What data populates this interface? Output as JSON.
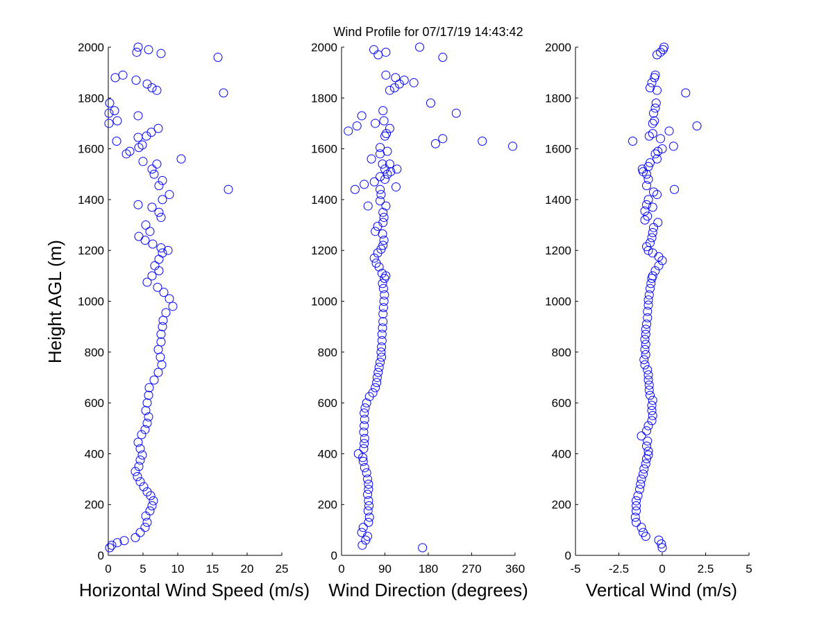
{
  "figure": {
    "title": "Wind Profile for  07/17/19 14:43:42",
    "marker_color": "#0000ff"
  },
  "chart_data": [
    {
      "type": "scatter",
      "title": "",
      "xlabel": "Horizontal Wind Speed (m/s)",
      "ylabel": "Height AGL (m)",
      "xlim": [
        0,
        25
      ],
      "ylim": [
        0,
        2000
      ],
      "xticks": [
        0,
        5,
        10,
        15,
        20,
        25
      ],
      "xtick_labels": [
        "0",
        "5",
        "10",
        "15",
        "20",
        "25"
      ],
      "yticks": [
        0,
        200,
        400,
        600,
        800,
        1000,
        1200,
        1400,
        1600,
        1800,
        2000
      ],
      "ytick_labels": [
        "0",
        "200",
        "400",
        "600",
        "800",
        "1000",
        "1200",
        "1400",
        "1600",
        "1800",
        "2000"
      ],
      "grid": false,
      "points": [
        [
          0.2,
          30
        ],
        [
          0.5,
          40
        ],
        [
          1.3,
          50
        ],
        [
          2.3,
          58
        ],
        [
          3.9,
          70
        ],
        [
          4.6,
          90
        ],
        [
          5.3,
          110
        ],
        [
          5.6,
          130
        ],
        [
          5.4,
          155
        ],
        [
          6.0,
          175
        ],
        [
          6.3,
          195
        ],
        [
          6.5,
          215
        ],
        [
          6.1,
          235
        ],
        [
          5.6,
          250
        ],
        [
          5.1,
          270
        ],
        [
          4.6,
          290
        ],
        [
          4.2,
          310
        ],
        [
          3.9,
          330
        ],
        [
          4.4,
          350
        ],
        [
          4.6,
          375
        ],
        [
          4.9,
          395
        ],
        [
          4.6,
          420
        ],
        [
          4.3,
          445
        ],
        [
          4.8,
          475
        ],
        [
          5.3,
          495
        ],
        [
          5.6,
          520
        ],
        [
          5.8,
          545
        ],
        [
          5.4,
          570
        ],
        [
          5.6,
          600
        ],
        [
          5.8,
          630
        ],
        [
          5.9,
          660
        ],
        [
          6.6,
          690
        ],
        [
          7.2,
          720
        ],
        [
          7.7,
          750
        ],
        [
          7.5,
          780
        ],
        [
          7.2,
          810
        ],
        [
          7.6,
          840
        ],
        [
          7.6,
          870
        ],
        [
          7.8,
          900
        ],
        [
          7.9,
          925
        ],
        [
          8.3,
          955
        ],
        [
          9.3,
          980
        ],
        [
          8.8,
          1010
        ],
        [
          8.0,
          1035
        ],
        [
          7.1,
          1055
        ],
        [
          5.6,
          1075
        ],
        [
          6.3,
          1100
        ],
        [
          7.3,
          1120
        ],
        [
          6.7,
          1140
        ],
        [
          7.3,
          1165
        ],
        [
          7.8,
          1190
        ],
        [
          8.6,
          1200
        ],
        [
          7.6,
          1210
        ],
        [
          6.4,
          1225
        ],
        [
          5.3,
          1240
        ],
        [
          4.4,
          1255
        ],
        [
          6.0,
          1275
        ],
        [
          5.4,
          1300
        ],
        [
          7.6,
          1330
        ],
        [
          7.3,
          1350
        ],
        [
          6.3,
          1370
        ],
        [
          4.3,
          1380
        ],
        [
          7.8,
          1400
        ],
        [
          8.8,
          1420
        ],
        [
          17.3,
          1440
        ],
        [
          7.3,
          1455
        ],
        [
          7.8,
          1475
        ],
        [
          6.6,
          1500
        ],
        [
          6.3,
          1520
        ],
        [
          7.0,
          1540
        ],
        [
          10.5,
          1560
        ],
        [
          5.0,
          1550
        ],
        [
          2.6,
          1580
        ],
        [
          3.1,
          1590
        ],
        [
          4.4,
          1605
        ],
        [
          4.9,
          1615
        ],
        [
          1.2,
          1630
        ],
        [
          4.3,
          1645
        ],
        [
          5.5,
          1650
        ],
        [
          6.2,
          1665
        ],
        [
          7.2,
          1680
        ],
        [
          0.1,
          1700
        ],
        [
          1.3,
          1710
        ],
        [
          4.3,
          1730
        ],
        [
          0.1,
          1740
        ],
        [
          0.9,
          1750
        ],
        [
          0.2,
          1780
        ],
        [
          16.6,
          1820
        ],
        [
          7.0,
          1830
        ],
        [
          6.3,
          1840
        ],
        [
          5.6,
          1855
        ],
        [
          4.0,
          1870
        ],
        [
          1.0,
          1880
        ],
        [
          2.1,
          1890
        ],
        [
          15.8,
          1960
        ],
        [
          7.6,
          1975
        ],
        [
          4.1,
          1980
        ],
        [
          5.8,
          1990
        ],
        [
          4.3,
          2000
        ]
      ]
    },
    {
      "type": "scatter",
      "title": "",
      "xlabel": "Wind Direction (degrees)",
      "ylabel": "",
      "xlim": [
        0,
        360
      ],
      "ylim": [
        0,
        2000
      ],
      "xticks": [
        0,
        90,
        180,
        270,
        360
      ],
      "xtick_labels": [
        "0",
        "90",
        "180",
        "270",
        "360"
      ],
      "yticks": [
        0,
        200,
        400,
        600,
        800,
        1000,
        1200,
        1400,
        1600,
        1800,
        2000
      ],
      "ytick_labels": [
        "0",
        "200",
        "400",
        "600",
        "800",
        "1000",
        "1200",
        "1400",
        "1600",
        "1800",
        "2000"
      ],
      "grid": false,
      "points": [
        [
          168,
          30
        ],
        [
          43,
          40
        ],
        [
          50,
          60
        ],
        [
          54,
          75
        ],
        [
          42,
          90
        ],
        [
          45,
          110
        ],
        [
          56,
          130
        ],
        [
          58,
          150
        ],
        [
          55,
          175
        ],
        [
          57,
          195
        ],
        [
          56,
          215
        ],
        [
          54,
          240
        ],
        [
          56,
          260
        ],
        [
          56,
          280
        ],
        [
          54,
          300
        ],
        [
          52,
          325
        ],
        [
          48,
          345
        ],
        [
          45,
          370
        ],
        [
          44,
          385
        ],
        [
          35,
          400
        ],
        [
          46,
          420
        ],
        [
          47,
          440
        ],
        [
          48,
          460
        ],
        [
          46,
          485
        ],
        [
          47,
          510
        ],
        [
          48,
          535
        ],
        [
          47,
          560
        ],
        [
          49,
          580
        ],
        [
          52,
          600
        ],
        [
          58,
          625
        ],
        [
          65,
          640
        ],
        [
          70,
          660
        ],
        [
          73,
          680
        ],
        [
          74,
          700
        ],
        [
          76,
          720
        ],
        [
          78,
          740
        ],
        [
          80,
          760
        ],
        [
          83,
          780
        ],
        [
          82,
          800
        ],
        [
          83,
          820
        ],
        [
          84,
          845
        ],
        [
          84,
          870
        ],
        [
          85,
          895
        ],
        [
          86,
          920
        ],
        [
          86,
          950
        ],
        [
          87,
          975
        ],
        [
          88,
          1000
        ],
        [
          89,
          1025
        ],
        [
          87,
          1050
        ],
        [
          85,
          1070
        ],
        [
          89,
          1090
        ],
        [
          92,
          1100
        ],
        [
          84,
          1110
        ],
        [
          78,
          1135
        ],
        [
          72,
          1150
        ],
        [
          68,
          1170
        ],
        [
          75,
          1190
        ],
        [
          82,
          1205
        ],
        [
          86,
          1220
        ],
        [
          88,
          1240
        ],
        [
          85,
          1265
        ],
        [
          70,
          1275
        ],
        [
          75,
          1295
        ],
        [
          86,
          1310
        ],
        [
          88,
          1330
        ],
        [
          86,
          1350
        ],
        [
          92,
          1375
        ],
        [
          80,
          1395
        ],
        [
          55,
          1375
        ],
        [
          82,
          1420
        ],
        [
          80,
          1440
        ],
        [
          28,
          1440
        ],
        [
          47,
          1460
        ],
        [
          68,
          1470
        ],
        [
          90,
          1480
        ],
        [
          80,
          1490
        ],
        [
          95,
          1500
        ],
        [
          102,
          1510
        ],
        [
          90,
          1520
        ],
        [
          115,
          1520
        ],
        [
          85,
          1540
        ],
        [
          113,
          1450
        ],
        [
          100,
          1540
        ],
        [
          62,
          1560
        ],
        [
          80,
          1580
        ],
        [
          95,
          1590
        ],
        [
          80,
          1605
        ],
        [
          195,
          1620
        ],
        [
          355,
          1610
        ],
        [
          210,
          1640
        ],
        [
          90,
          1650
        ],
        [
          292,
          1630
        ],
        [
          93,
          1660
        ],
        [
          100,
          1680
        ],
        [
          14,
          1670
        ],
        [
          32,
          1690
        ],
        [
          88,
          1710
        ],
        [
          70,
          1700
        ],
        [
          42,
          1730
        ],
        [
          238,
          1740
        ],
        [
          86,
          1750
        ],
        [
          185,
          1780
        ],
        [
          100,
          1830
        ],
        [
          110,
          1840
        ],
        [
          120,
          1855
        ],
        [
          150,
          1860
        ],
        [
          130,
          1870
        ],
        [
          112,
          1880
        ],
        [
          92,
          1890
        ],
        [
          76,
          1970
        ],
        [
          210,
          1960
        ],
        [
          67,
          1990
        ],
        [
          92,
          1980
        ],
        [
          162,
          2000
        ]
      ]
    },
    {
      "type": "scatter",
      "title": "",
      "xlabel": "Vertical Wind (m/s)",
      "ylabel": "",
      "xlim": [
        -5,
        5
      ],
      "ylim": [
        0,
        2000
      ],
      "xticks": [
        -5,
        -2.5,
        0,
        2.5,
        5
      ],
      "xtick_labels": [
        "-5",
        "-2.5",
        "0",
        "2.5",
        "5"
      ],
      "yticks": [
        0,
        200,
        400,
        600,
        800,
        1000,
        1200,
        1400,
        1600,
        1800,
        2000
      ],
      "ytick_labels": [
        "0",
        "200",
        "400",
        "600",
        "800",
        "1000",
        "1200",
        "1400",
        "1600",
        "1800",
        "2000"
      ],
      "grid": false,
      "points": [
        [
          0,
          30
        ],
        [
          -0.05,
          45
        ],
        [
          -0.2,
          60
        ],
        [
          -0.95,
          75
        ],
        [
          -1.1,
          90
        ],
        [
          -1.2,
          110
        ],
        [
          -1.5,
          130
        ],
        [
          -1.55,
          150
        ],
        [
          -1.5,
          175
        ],
        [
          -1.5,
          195
        ],
        [
          -1.5,
          215
        ],
        [
          -1.4,
          235
        ],
        [
          -1.3,
          260
        ],
        [
          -1.25,
          280
        ],
        [
          -1.2,
          300
        ],
        [
          -1.1,
          320
        ],
        [
          -1.05,
          340
        ],
        [
          -0.95,
          360
        ],
        [
          -0.9,
          380
        ],
        [
          -0.8,
          395
        ],
        [
          -0.8,
          410
        ],
        [
          -0.9,
          430
        ],
        [
          -0.85,
          450
        ],
        [
          -1.2,
          470
        ],
        [
          -0.9,
          490
        ],
        [
          -0.8,
          510
        ],
        [
          -0.6,
          530
        ],
        [
          -0.55,
          550
        ],
        [
          -0.6,
          570
        ],
        [
          -0.6,
          590
        ],
        [
          -0.55,
          610
        ],
        [
          -0.7,
          630
        ],
        [
          -0.75,
          650
        ],
        [
          -0.75,
          670
        ],
        [
          -0.8,
          690
        ],
        [
          -0.8,
          710
        ],
        [
          -0.85,
          730
        ],
        [
          -1.0,
          750
        ],
        [
          -1.05,
          770
        ],
        [
          -0.95,
          790
        ],
        [
          -1.0,
          810
        ],
        [
          -0.95,
          830
        ],
        [
          -1.0,
          850
        ],
        [
          -0.95,
          870
        ],
        [
          -0.95,
          890
        ],
        [
          -0.9,
          910
        ],
        [
          -0.85,
          935
        ],
        [
          -0.85,
          960
        ],
        [
          -0.8,
          985
        ],
        [
          -0.8,
          1005
        ],
        [
          -0.75,
          1025
        ],
        [
          -0.7,
          1050
        ],
        [
          -0.65,
          1070
        ],
        [
          -0.6,
          1090
        ],
        [
          -0.55,
          1100
        ],
        [
          -0.4,
          1120
        ],
        [
          -0.2,
          1140
        ],
        [
          0,
          1160
        ],
        [
          -0.2,
          1175
        ],
        [
          -0.55,
          1190
        ],
        [
          -0.8,
          1200
        ],
        [
          -0.9,
          1215
        ],
        [
          -0.7,
          1230
        ],
        [
          -0.6,
          1250
        ],
        [
          -0.55,
          1270
        ],
        [
          -0.5,
          1290
        ],
        [
          -0.25,
          1310
        ],
        [
          -1.0,
          1320
        ],
        [
          -0.85,
          1335
        ],
        [
          -1.0,
          1355
        ],
        [
          -0.9,
          1380
        ],
        [
          -0.55,
          1370
        ],
        [
          -0.8,
          1400
        ],
        [
          -0.3,
          1420
        ],
        [
          -0.5,
          1430
        ],
        [
          0.7,
          1440
        ],
        [
          -0.9,
          1455
        ],
        [
          -0.8,
          1480
        ],
        [
          -0.9,
          1500
        ],
        [
          -1.1,
          1510
        ],
        [
          -1.15,
          1520
        ],
        [
          -0.8,
          1530
        ],
        [
          -0.7,
          1545
        ],
        [
          -0.3,
          1560
        ],
        [
          -0.4,
          1580
        ],
        [
          -0.25,
          1590
        ],
        [
          0,
          1600
        ],
        [
          -1.7,
          1630
        ],
        [
          -0.1,
          1640
        ],
        [
          0.4,
          1670
        ],
        [
          -0.75,
          1650
        ],
        [
          -0.55,
          1660
        ],
        [
          0.65,
          1610
        ],
        [
          2.0,
          1690
        ],
        [
          -0.55,
          1700
        ],
        [
          -0.45,
          1710
        ],
        [
          -0.5,
          1740
        ],
        [
          -0.4,
          1760
        ],
        [
          -0.35,
          1780
        ],
        [
          1.35,
          1820
        ],
        [
          -0.3,
          1830
        ],
        [
          -0.7,
          1840
        ],
        [
          -0.6,
          1860
        ],
        [
          -0.45,
          1880
        ],
        [
          -0.4,
          1890
        ],
        [
          -0.3,
          1970
        ],
        [
          -0.1,
          1980
        ],
        [
          0.05,
          1990
        ],
        [
          0.1,
          2000
        ]
      ]
    }
  ]
}
